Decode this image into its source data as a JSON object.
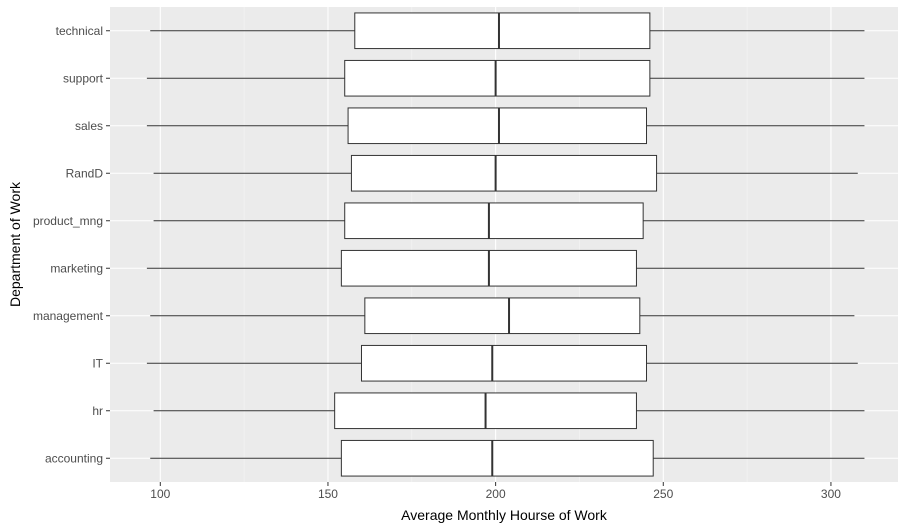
{
  "chart_data": {
    "type": "boxplot",
    "orientation": "horizontal",
    "xlabel": "Average Monthly Hourse of Work",
    "ylabel": "Department of Work",
    "xlim": [
      85,
      320
    ],
    "x_ticks": [
      100,
      150,
      200,
      250,
      300
    ],
    "grid": true,
    "legend": "none",
    "categories": [
      "accounting",
      "hr",
      "IT",
      "management",
      "marketing",
      "product_mng",
      "RandD",
      "sales",
      "support",
      "technical"
    ],
    "boxes": [
      {
        "category": "accounting",
        "min": 97,
        "q1": 154,
        "median": 199,
        "q3": 247,
        "max": 310
      },
      {
        "category": "hr",
        "min": 98,
        "q1": 152,
        "median": 197,
        "q3": 242,
        "max": 310
      },
      {
        "category": "IT",
        "min": 96,
        "q1": 160,
        "median": 199,
        "q3": 245,
        "max": 308
      },
      {
        "category": "management",
        "min": 97,
        "q1": 161,
        "median": 204,
        "q3": 243,
        "max": 307
      },
      {
        "category": "marketing",
        "min": 96,
        "q1": 154,
        "median": 198,
        "q3": 242,
        "max": 310
      },
      {
        "category": "product_mng",
        "min": 98,
        "q1": 155,
        "median": 198,
        "q3": 244,
        "max": 310
      },
      {
        "category": "RandD",
        "min": 98,
        "q1": 157,
        "median": 200,
        "q3": 248,
        "max": 308
      },
      {
        "category": "sales",
        "min": 96,
        "q1": 156,
        "median": 201,
        "q3": 245,
        "max": 310
      },
      {
        "category": "support",
        "min": 96,
        "q1": 155,
        "median": 200,
        "q3": 246,
        "max": 310
      },
      {
        "category": "technical",
        "min": 97,
        "q1": 158,
        "median": 201,
        "q3": 246,
        "max": 310
      }
    ]
  },
  "colors": {
    "panel_bg": "#ebebeb",
    "grid_major": "#ffffff",
    "grid_minor": "#f5f5f5",
    "box_fill": "#ffffff",
    "box_stroke": "#333333",
    "tick_text": "#4d4d4d",
    "title_text": "#000000"
  }
}
